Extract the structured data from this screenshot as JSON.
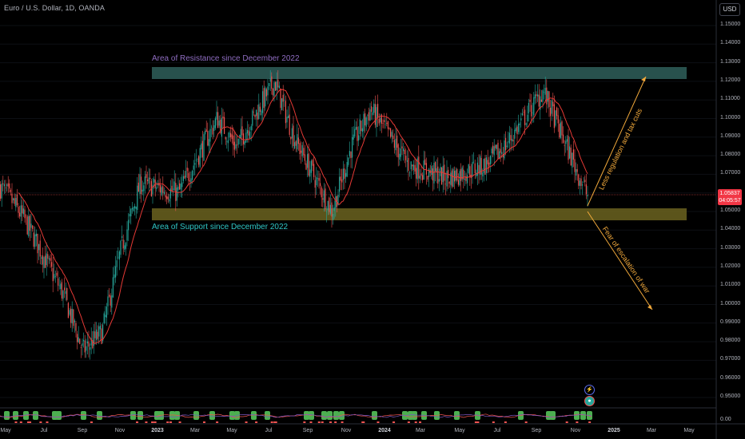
{
  "header": {
    "symbol_title": "Euro / U.S. Dollar, 1D, OANDA",
    "currency": "USD"
  },
  "price_axis": [
    "1.15000",
    "1.14000",
    "1.13000",
    "1.12000",
    "1.11000",
    "1.10000",
    "1.09000",
    "1.08000",
    "1.07000",
    "1.06000",
    "1.05000",
    "1.04000",
    "1.03000",
    "1.02000",
    "1.01000",
    "1.00000",
    "0.99000",
    "0.98000",
    "0.97000",
    "0.96000",
    "0.95000"
  ],
  "indicator_axis": [
    "0.00"
  ],
  "price_tag": {
    "value": "1.05837",
    "countdown": "04:05:57"
  },
  "time_axis": [
    {
      "label": "May",
      "major": false
    },
    {
      "label": "Jul",
      "major": false
    },
    {
      "label": "Sep",
      "major": false
    },
    {
      "label": "Nov",
      "major": false
    },
    {
      "label": "2023",
      "major": true
    },
    {
      "label": "Mar",
      "major": false
    },
    {
      "label": "May",
      "major": false
    },
    {
      "label": "Jul",
      "major": false
    },
    {
      "label": "Sep",
      "major": false
    },
    {
      "label": "Nov",
      "major": false
    },
    {
      "label": "2024",
      "major": true
    },
    {
      "label": "Mar",
      "major": false
    },
    {
      "label": "May",
      "major": false
    },
    {
      "label": "Jul",
      "major": false
    },
    {
      "label": "Sep",
      "major": false
    },
    {
      "label": "Nov",
      "major": false
    },
    {
      "label": "2025",
      "major": true
    },
    {
      "label": "Mar",
      "major": false
    },
    {
      "label": "May",
      "major": false
    }
  ],
  "annotations": {
    "resistance": "Area of Resistance since December 2022",
    "support": "Area of Support since December 2022",
    "up_arrow": "Less regulation and tax cuts",
    "down_arrow": "Fear of escalation of war"
  },
  "colors": {
    "up": "#26a69a",
    "down": "#ef5350",
    "ma": "#e53935",
    "resistance_zone": "#2f5f5a",
    "resistance_text": "#8e6cc0",
    "support_zone": "#6b6320",
    "support_text": "#2fc5c5",
    "arrow": "#f2a93b"
  },
  "chart_data": {
    "type": "candlestick",
    "symbol": "Euro / U.S. Dollar, 1D, OANDA",
    "ylim": [
      0.947,
      1.157
    ],
    "zones": [
      {
        "name": "Area of Resistance since December 2022",
        "from": 1.1215,
        "to": 1.1275
      },
      {
        "name": "Area of Support since December 2022",
        "from": 1.0455,
        "to": 1.0515
      }
    ],
    "anchors": [
      {
        "t": "Apr 2022",
        "v": 1.07
      },
      {
        "t": "May 2022",
        "v": 1.06
      },
      {
        "t": "Jun 2022",
        "v": 1.045
      },
      {
        "t": "Jul 2022",
        "v": 1.025
      },
      {
        "t": "Aug 2022",
        "v": 1.005
      },
      {
        "t": "Sep 2022",
        "v": 0.975
      },
      {
        "t": "Oct 2022",
        "v": 0.985
      },
      {
        "t": "Nov 2022",
        "v": 1.03
      },
      {
        "t": "Dec 2022",
        "v": 1.065
      },
      {
        "t": "Feb 2023",
        "v": 1.06
      },
      {
        "t": "Apr 2023",
        "v": 1.1
      },
      {
        "t": "May 2023",
        "v": 1.085
      },
      {
        "t": "Jul 2023",
        "v": 1.12
      },
      {
        "t": "Aug 2023",
        "v": 1.09
      },
      {
        "t": "Oct 2023",
        "v": 1.05
      },
      {
        "t": "Nov 2023",
        "v": 1.085
      },
      {
        "t": "Dec 2023",
        "v": 1.105
      },
      {
        "t": "Feb 2024",
        "v": 1.075
      },
      {
        "t": "Apr 2024",
        "v": 1.068
      },
      {
        "t": "Jun 2024",
        "v": 1.075
      },
      {
        "t": "Jul 2024",
        "v": 1.085
      },
      {
        "t": "Sep 2024",
        "v": 1.115
      },
      {
        "t": "Oct 2024",
        "v": 1.09
      },
      {
        "t": "Nov 2024",
        "v": 1.058
      }
    ],
    "last_price": 1.05837,
    "arrows": [
      {
        "label": "Less regulation and tax cuts",
        "from": {
          "t": "Nov 2024",
          "v": 1.052
        },
        "to": {
          "t": "Jan 2025",
          "v": 1.125
        }
      },
      {
        "label": "Fear of escalation of war",
        "from": {
          "t": "Nov 2024",
          "v": 1.049
        },
        "to": {
          "t": "Feb 2025",
          "v": 0.996
        }
      }
    ]
  }
}
